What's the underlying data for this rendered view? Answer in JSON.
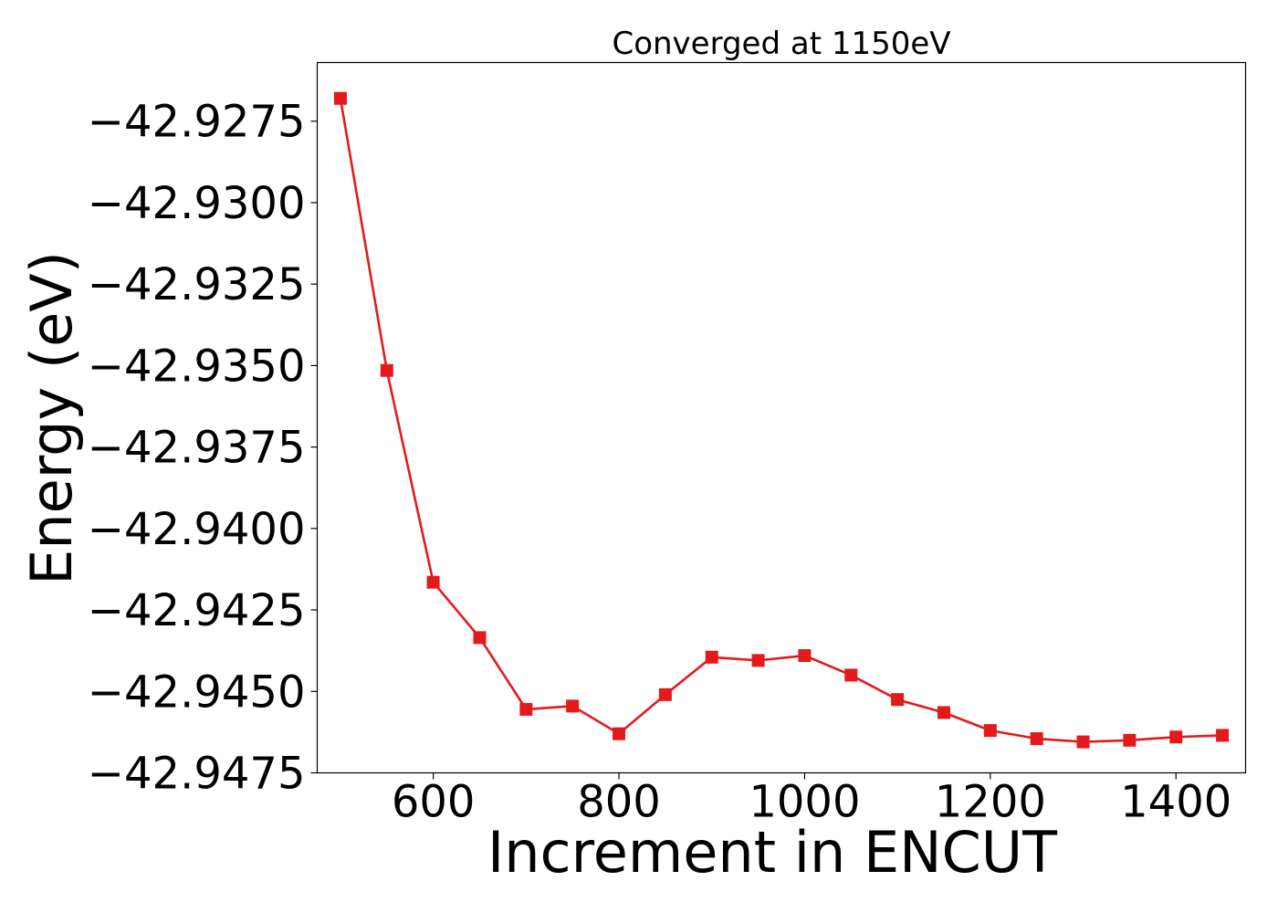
{
  "chart_data": {
    "type": "line",
    "title": "Converged at 1150eV",
    "xlabel": "Increment in ENCUT",
    "ylabel": "Energy (eV)",
    "xlim": [
      475,
      1475
    ],
    "ylim": [
      -42.9475,
      -42.9257
    ],
    "x_ticks": [
      600,
      800,
      1000,
      1200,
      1400
    ],
    "x_tick_labels": [
      "600",
      "800",
      "1000",
      "1200",
      "1400"
    ],
    "y_ticks": [
      -42.9475,
      -42.945,
      -42.9425,
      -42.94,
      -42.9375,
      -42.935,
      -42.9325,
      -42.93,
      -42.9275
    ],
    "y_tick_labels": [
      "−42.9475",
      "−42.9450",
      "−42.9425",
      "−42.9400",
      "−42.9375",
      "−42.9350",
      "−42.9325",
      "−42.9300",
      "−42.9275"
    ],
    "grid": false,
    "marker": "square",
    "series": [
      {
        "color": "#e31a1c",
        "x": [
          500,
          550,
          600,
          650,
          700,
          750,
          800,
          850,
          900,
          950,
          1000,
          1050,
          1100,
          1150,
          1200,
          1250,
          1300,
          1350,
          1400,
          1450
        ],
        "y": [
          -42.9268,
          -42.93515,
          -42.94165,
          -42.94335,
          -42.94555,
          -42.94545,
          -42.9463,
          -42.9451,
          -42.94395,
          -42.94405,
          -42.9439,
          -42.9445,
          -42.94525,
          -42.94565,
          -42.9462,
          -42.94645,
          -42.94655,
          -42.9465,
          -42.9464,
          -42.94635
        ]
      }
    ]
  }
}
